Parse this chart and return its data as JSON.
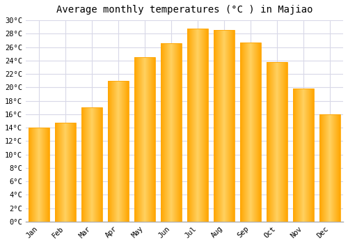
{
  "title": "Average monthly temperatures (°C ) in Majiao",
  "months": [
    "Jan",
    "Feb",
    "Mar",
    "Apr",
    "May",
    "Jun",
    "Jul",
    "Aug",
    "Sep",
    "Oct",
    "Nov",
    "Dec"
  ],
  "temperatures": [
    14.0,
    14.7,
    17.0,
    21.0,
    24.5,
    26.6,
    28.8,
    28.5,
    26.7,
    23.8,
    19.8,
    16.0
  ],
  "bar_color_center": "#FFD060",
  "bar_color_edge": "#FFA500",
  "ylim": [
    0,
    30
  ],
  "ytick_step": 2,
  "background_color": "#ffffff",
  "grid_color": "#d8d8e8",
  "title_fontsize": 10,
  "tick_fontsize": 7.5,
  "font_family": "monospace"
}
